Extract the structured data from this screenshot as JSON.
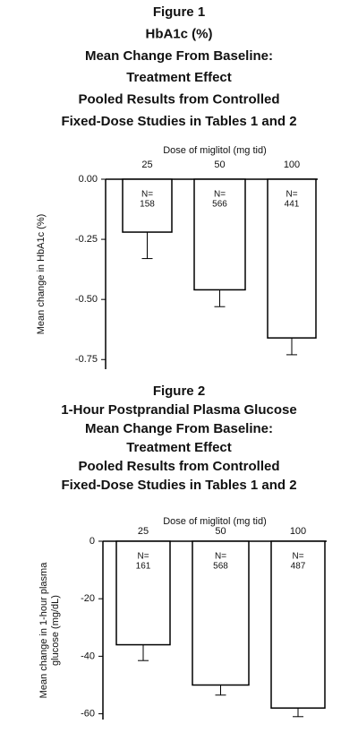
{
  "chart_data": [
    {
      "type": "bar",
      "title": [
        "Figure 1",
        "HbA1c (%)",
        "Mean Change From Baseline:",
        "Treatment Effect",
        "Pooled Results from Controlled",
        "Fixed-Dose Studies in Tables 1 and 2"
      ],
      "x_label": "Dose of miglitol (mg tid)",
      "y_label": [
        "Mean change in HbA1c (%)"
      ],
      "categories": [
        "25",
        "50",
        "100"
      ],
      "values": [
        -0.22,
        -0.46,
        -0.66
      ],
      "errors": [
        0.11,
        0.07,
        0.07
      ],
      "n_labels": [
        [
          "N=",
          "158"
        ],
        [
          "N=",
          "566"
        ],
        [
          "N=",
          "441"
        ]
      ],
      "ylim": [
        0,
        -0.79
      ],
      "yticks": [
        {
          "value": 0,
          "label": "0.00"
        },
        {
          "value": -0.25,
          "label": "-0.25"
        },
        {
          "value": -0.5,
          "label": "-0.50"
        },
        {
          "value": -0.75,
          "label": "-0.75"
        }
      ],
      "color": "#ffffff"
    },
    {
      "type": "bar",
      "title": [
        "Figure 2",
        "1-Hour Postprandial Plasma Glucose",
        "Mean Change From Baseline:",
        "Treatment Effect",
        "Pooled Results from Controlled",
        "Fixed-Dose Studies in Tables 1 and 2"
      ],
      "x_label": "Dose of miglitol (mg tid)",
      "y_label": [
        "Mean change in 1-hour plasma",
        "glucose (mg/dL)"
      ],
      "categories": [
        "25",
        "50",
        "100"
      ],
      "values": [
        -36,
        -50,
        -58
      ],
      "errors": [
        5.5,
        3.5,
        3
      ],
      "n_labels": [
        [
          "N=",
          "161"
        ],
        [
          "N=",
          "568"
        ],
        [
          "N=",
          "487"
        ]
      ],
      "ylim": [
        0,
        -62
      ],
      "yticks": [
        0,
        -20,
        -40,
        -60
      ],
      "color": "#ffffff"
    }
  ]
}
